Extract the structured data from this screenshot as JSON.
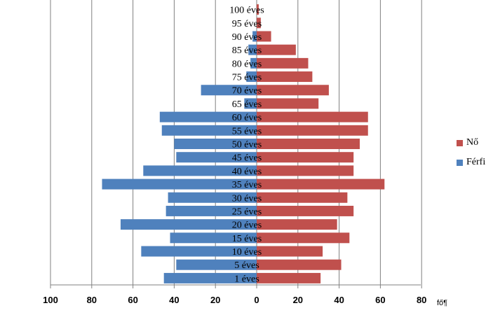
{
  "chart_data": {
    "type": "bar",
    "orientation": "horizontal-population-pyramid",
    "categories": [
      "1 éves",
      "5 éves",
      "10 éves",
      "15 éves",
      "20 éves",
      "25 éves",
      "30 éves",
      "35 éves",
      "40 éves",
      "45 éves",
      "50 éves",
      "55 éves",
      "60 éves",
      "65 éves",
      "70 éves",
      "75 éves",
      "80 éves",
      "85 éves",
      "90 éves",
      "95 éves",
      "100 éves"
    ],
    "series": [
      {
        "name": "Nő",
        "color": "#c0504d",
        "side": "right",
        "values": [
          31,
          41,
          32,
          45,
          39,
          47,
          44,
          62,
          47,
          47,
          50,
          54,
          54,
          30,
          35,
          27,
          25,
          19,
          7,
          2,
          1
        ]
      },
      {
        "name": "Férfi",
        "color": "#4f81bd",
        "side": "left",
        "values": [
          45,
          39,
          56,
          42,
          66,
          44,
          43,
          75,
          55,
          39,
          40,
          46,
          47,
          6,
          27,
          5,
          3,
          4,
          2,
          0,
          0
        ]
      }
    ],
    "x_ticks": [
      "100",
      "80",
      "60",
      "40",
      "20",
      "0",
      "20",
      "40",
      "60",
      "80"
    ],
    "xlim": [
      -100,
      80
    ],
    "unit_label": "fő¶",
    "title": "",
    "grid": "vertical",
    "legend_position": "right"
  },
  "colors": {
    "female": "#c0504d",
    "male": "#4f81bd",
    "grid": "#808080"
  }
}
